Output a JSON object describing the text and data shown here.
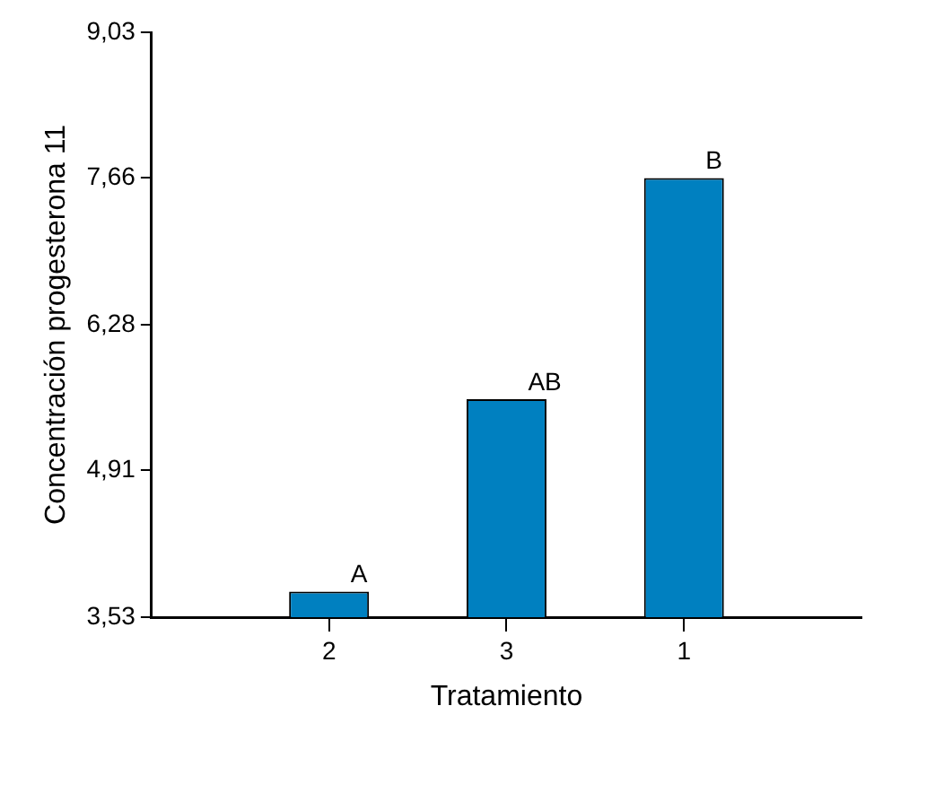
{
  "chart_data": {
    "type": "bar",
    "xlabel": "Tratamiento",
    "ylabel": "Concentración progesterona 11",
    "categories": [
      "2",
      "3",
      "1"
    ],
    "values": [
      3.77,
      5.58,
      7.66
    ],
    "color": "#0080c0",
    "ylim": [
      3.53,
      9.03
    ],
    "yticks": [
      {
        "value": 3.53,
        "label": "3,53"
      },
      {
        "value": 4.91,
        "label": "4,91"
      },
      {
        "value": 6.28,
        "label": "6,28"
      },
      {
        "value": 7.66,
        "label": "7,66"
      },
      {
        "value": 9.03,
        "label": "9,03"
      }
    ],
    "grid": false,
    "legend": false,
    "annotations": [
      {
        "text": "A",
        "x": "2",
        "y": 3.77
      },
      {
        "text": "AB",
        "x": "3",
        "y": 5.58
      },
      {
        "text": "B",
        "x": "1",
        "y": 7.66
      }
    ]
  }
}
